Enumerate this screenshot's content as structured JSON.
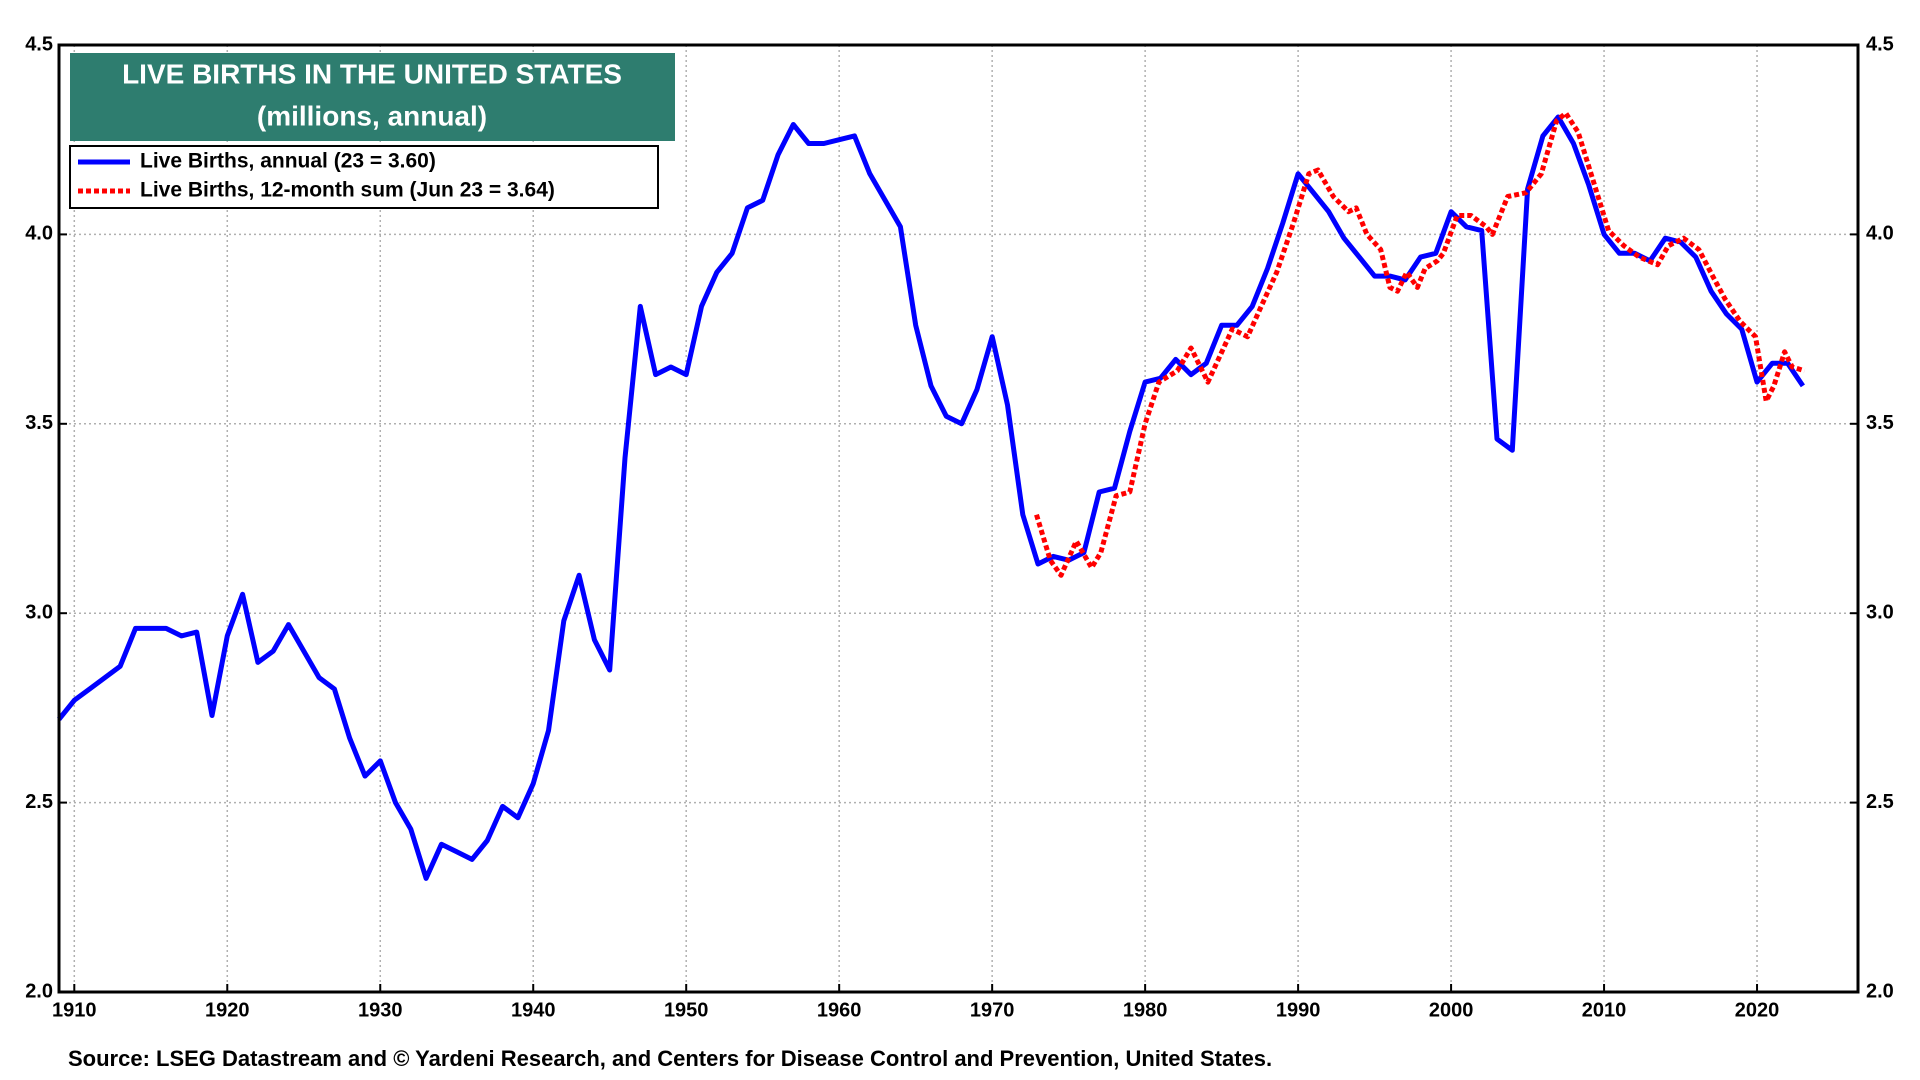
{
  "chart_data": {
    "type": "line",
    "title": "LIVE BIRTHS IN THE UNITED STATES",
    "subtitle": "(millions, annual)",
    "source": "Source: LSEG Datastream and © Yardeni Research, and Centers for Disease Control and Prevention, United States.",
    "xlim": [
      1909,
      2026.6
    ],
    "xticks": [
      1910,
      1920,
      1930,
      1940,
      1950,
      1960,
      1970,
      1980,
      1990,
      2000,
      2010,
      2020
    ],
    "ylim": [
      2.0,
      4.5
    ],
    "yticks": [
      {
        "value": 2.0,
        "label": "2.0"
      },
      {
        "value": 2.5,
        "label": "2.5"
      },
      {
        "value": 3.0,
        "label": "3.0"
      },
      {
        "value": 3.5,
        "label": "3.5"
      },
      {
        "value": 4.0,
        "label": "4.0"
      },
      {
        "value": 4.5,
        "label": "4.5"
      }
    ],
    "y2lim": [
      2.0,
      4.5
    ],
    "y2ticks": [
      {
        "value": 2.0,
        "label": "2.0"
      },
      {
        "value": 2.5,
        "label": "2.5"
      },
      {
        "value": 3.0,
        "label": "3.0"
      },
      {
        "value": 3.5,
        "label": "3.5"
      },
      {
        "value": 4.0,
        "label": "4.0"
      },
      {
        "value": 4.5,
        "label": "4.5"
      }
    ],
    "grid": true,
    "legend": "top-left",
    "series": [
      {
        "name": "Live Births, annual (23 = 3.60)",
        "color": "#0000ff",
        "style": "solid",
        "x": [
          1909,
          1910,
          1911,
          1912,
          1913,
          1914,
          1915,
          1916,
          1917,
          1918,
          1919,
          1920,
          1921,
          1922,
          1923,
          1924,
          1925,
          1926,
          1927,
          1928,
          1929,
          1930,
          1931,
          1932,
          1933,
          1934,
          1935,
          1936,
          1937,
          1938,
          1939,
          1940,
          1941,
          1942,
          1943,
          1944,
          1945,
          1946,
          1947,
          1948,
          1949,
          1950,
          1951,
          1952,
          1953,
          1954,
          1955,
          1956,
          1957,
          1958,
          1959,
          1960,
          1961,
          1962,
          1963,
          1964,
          1965,
          1966,
          1967,
          1968,
          1969,
          1970,
          1971,
          1972,
          1973,
          1974,
          1975,
          1976,
          1977,
          1978,
          1979,
          1980,
          1981,
          1982,
          1983,
          1984,
          1985,
          1986,
          1987,
          1988,
          1989,
          1990,
          1991,
          1992,
          1993,
          1994,
          1995,
          1996,
          1997,
          1998,
          1999,
          2000,
          2001,
          2002,
          2003,
          2004,
          2005,
          2006,
          2007,
          2008,
          2009,
          2010,
          2011,
          2012,
          2013,
          2014,
          2015,
          2016,
          2017,
          2018,
          2019,
          2020,
          2021,
          2022,
          2023
        ],
        "values": [
          2.72,
          2.77,
          2.8,
          2.83,
          2.86,
          2.96,
          2.96,
          2.96,
          2.94,
          2.95,
          2.73,
          2.94,
          3.05,
          2.87,
          2.9,
          2.97,
          2.9,
          2.83,
          2.8,
          2.67,
          2.57,
          2.61,
          2.5,
          2.43,
          2.3,
          2.39,
          2.37,
          2.35,
          2.4,
          2.49,
          2.46,
          2.55,
          2.69,
          2.98,
          3.1,
          2.93,
          2.85,
          3.41,
          3.81,
          3.63,
          3.65,
          3.63,
          3.81,
          3.9,
          3.95,
          4.07,
          4.09,
          4.21,
          4.29,
          4.24,
          4.24,
          4.25,
          4.26,
          4.16,
          4.09,
          4.02,
          3.76,
          3.6,
          3.52,
          3.5,
          3.59,
          3.73,
          3.55,
          3.26,
          3.13,
          3.15,
          3.14,
          3.16,
          3.32,
          3.33,
          3.48,
          3.61,
          3.62,
          3.67,
          3.63,
          3.66,
          3.76,
          3.76,
          3.81,
          3.91,
          4.03,
          4.16,
          4.11,
          4.06,
          3.99,
          3.94,
          3.89,
          3.89,
          3.88,
          3.94,
          3.95,
          4.06,
          4.02,
          4.01,
          3.46,
          3.43,
          4.12,
          4.26,
          4.31,
          4.24,
          4.13,
          4.0,
          3.95,
          3.95,
          3.93,
          3.99,
          3.98,
          3.94,
          3.85,
          3.79,
          3.75,
          3.61,
          3.66,
          3.66,
          3.6
        ]
      },
      {
        "name": "Live Births, 12-month sum (Jun 23 = 3.64)",
        "color": "#ff0000",
        "style": "dotted",
        "x": [
          1972.9,
          1973.8,
          1974.5,
          1975.5,
          1976.5,
          1977.1,
          1978.1,
          1979.0,
          1980.0,
          1980.9,
          1982.1,
          1983.0,
          1984.1,
          1984.9,
          1985.7,
          1986.7,
          1987.7,
          1988.6,
          1989.7,
          1990.7,
          1991.3,
          1992.3,
          1993.3,
          1993.8,
          1994.5,
          1995.4,
          1996.0,
          1996.5,
          1997.1,
          1997.8,
          1998.3,
          1999.1,
          1999.5,
          2000.4,
          2001.3,
          2002.3,
          2002.7,
          2003.7,
          2004.9,
          2005.9,
          2006.9,
          2007.5,
          2008.3,
          2009.3,
          2010.3,
          2011.3,
          2012.3,
          2013.5,
          2014.2,
          2015.2,
          2016.2,
          2017.1,
          2017.9,
          2018.9,
          2019.9,
          2020.6,
          2021.1,
          2021.8,
          2022.3,
          2023.1
        ],
        "values": [
          3.26,
          3.14,
          3.1,
          3.19,
          3.12,
          3.16,
          3.31,
          3.32,
          3.5,
          3.61,
          3.64,
          3.7,
          3.61,
          3.68,
          3.75,
          3.73,
          3.82,
          3.9,
          4.03,
          4.16,
          4.17,
          4.1,
          4.06,
          4.07,
          4.0,
          3.96,
          3.86,
          3.85,
          3.9,
          3.86,
          3.91,
          3.93,
          3.95,
          4.05,
          4.05,
          4.02,
          4.0,
          4.1,
          4.11,
          4.16,
          4.3,
          4.32,
          4.27,
          4.14,
          4.01,
          3.97,
          3.94,
          3.92,
          3.97,
          3.99,
          3.96,
          3.89,
          3.83,
          3.77,
          3.73,
          3.56,
          3.6,
          3.69,
          3.65,
          3.64
        ]
      }
    ]
  }
}
